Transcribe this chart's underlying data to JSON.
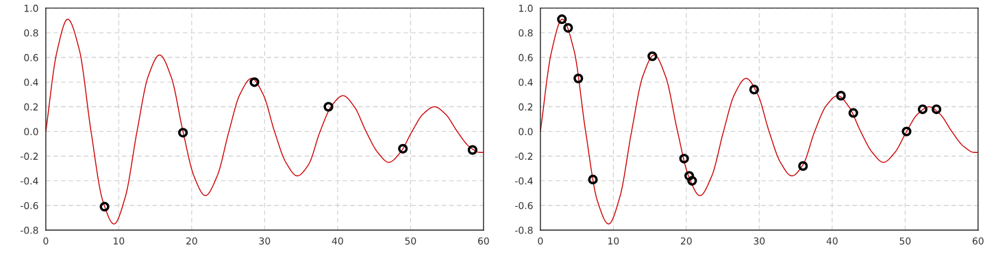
{
  "chart_data": [
    {
      "type": "line",
      "xlim": [
        0,
        60
      ],
      "ylim": [
        -0.8,
        1.0
      ],
      "xticks": [
        0,
        10,
        20,
        30,
        40,
        50,
        60
      ],
      "yticks": [
        {
          "value": -0.8,
          "label": "-0.8"
        },
        {
          "value": -0.6,
          "label": "-0.6"
        },
        {
          "value": -0.4,
          "label": "-0.4"
        },
        {
          "value": -0.2,
          "label": "-0.2"
        },
        {
          "value": 0,
          "label": "0.0"
        },
        {
          "value": 0.2,
          "label": "0.2"
        },
        {
          "value": 0.4,
          "label": "0.4"
        },
        {
          "value": 0.6,
          "label": "0.6"
        },
        {
          "value": 0.8,
          "label": "0.8"
        },
        {
          "value": 1.0,
          "label": "1.0"
        }
      ],
      "grid": true,
      "legend": false,
      "series": [
        {
          "color": "#cc0000",
          "marker": "none",
          "x": [
            0,
            1.5,
            3.0,
            4.6,
            6.2,
            7.8,
            9.35,
            10.9,
            12.5,
            14.05,
            15.6,
            17.2,
            18.8,
            20.3,
            21.87,
            23.5,
            25.1,
            26.6,
            28.2,
            29.8,
            31.35,
            32.9,
            34.47,
            36.0,
            37.6,
            39.2,
            40.75,
            42.3,
            43.9,
            45.5,
            47.03,
            48.6,
            50.2,
            51.7,
            53.28,
            54.8,
            56.4,
            58.0,
            59.5,
            60
          ],
          "values": [
            0,
            0.64,
            0.91,
            0.66,
            0,
            -0.56,
            -0.75,
            -0.53,
            0,
            0.45,
            0.62,
            0.44,
            0,
            -0.36,
            -0.52,
            -0.36,
            0,
            0.3,
            0.43,
            0.3,
            0,
            -0.25,
            -0.36,
            -0.27,
            0,
            0.21,
            0.29,
            0.2,
            0,
            -0.17,
            -0.25,
            -0.17,
            0,
            0.14,
            0.2,
            0.14,
            0,
            -0.12,
            -0.17,
            -0.17
          ]
        },
        {
          "type": "scatter",
          "color": "#000000",
          "marker": "circle",
          "x": [
            8.05,
            18.8,
            28.6,
            38.75,
            48.95,
            58.5
          ],
          "values": [
            -0.61,
            -0.01,
            0.4,
            0.2,
            -0.14,
            -0.15
          ]
        }
      ]
    },
    {
      "type": "line",
      "xlim": [
        0,
        60
      ],
      "ylim": [
        -0.8,
        1.0
      ],
      "xticks": [
        0,
        10,
        20,
        30,
        40,
        50,
        60
      ],
      "yticks": [
        {
          "value": -0.8,
          "label": "-0.8"
        },
        {
          "value": -0.6,
          "label": "-0.6"
        },
        {
          "value": -0.4,
          "label": "-0.4"
        },
        {
          "value": -0.2,
          "label": "-0.2"
        },
        {
          "value": 0,
          "label": "0.0"
        },
        {
          "value": 0.2,
          "label": "0.2"
        },
        {
          "value": 0.4,
          "label": "0.4"
        },
        {
          "value": 0.6,
          "label": "0.6"
        },
        {
          "value": 0.8,
          "label": "0.8"
        },
        {
          "value": 1.0,
          "label": "1.0"
        }
      ],
      "grid": true,
      "legend": false,
      "series": [
        {
          "color": "#cc0000",
          "marker": "none",
          "x": [
            0,
            1.5,
            3.0,
            4.6,
            6.2,
            7.8,
            9.35,
            10.9,
            12.5,
            14.05,
            15.6,
            17.2,
            18.8,
            20.3,
            21.87,
            23.5,
            25.1,
            26.6,
            28.2,
            29.8,
            31.35,
            32.9,
            34.47,
            36.0,
            37.6,
            39.2,
            40.75,
            42.3,
            43.9,
            45.5,
            47.03,
            48.6,
            50.2,
            51.7,
            53.28,
            54.8,
            56.4,
            58.0,
            59.5,
            60
          ],
          "values": [
            0,
            0.64,
            0.91,
            0.66,
            0,
            -0.56,
            -0.75,
            -0.53,
            0,
            0.45,
            0.62,
            0.44,
            0,
            -0.36,
            -0.52,
            -0.36,
            0,
            0.3,
            0.43,
            0.3,
            0,
            -0.25,
            -0.36,
            -0.27,
            0,
            0.21,
            0.29,
            0.2,
            0,
            -0.17,
            -0.25,
            -0.17,
            0,
            0.14,
            0.2,
            0.14,
            0,
            -0.12,
            -0.17,
            -0.17
          ]
        },
        {
          "type": "scatter",
          "color": "#000000",
          "marker": "circle",
          "x": [
            2.95,
            3.8,
            5.2,
            7.2,
            15.35,
            19.7,
            20.4,
            20.8,
            29.3,
            36.0,
            41.2,
            42.9,
            50.2,
            52.4,
            54.3
          ],
          "values": [
            0.91,
            0.84,
            0.43,
            -0.39,
            0.61,
            -0.22,
            -0.36,
            -0.4,
            0.34,
            -0.28,
            0.29,
            0.15,
            0.0,
            0.18,
            0.18
          ]
        }
      ]
    }
  ]
}
